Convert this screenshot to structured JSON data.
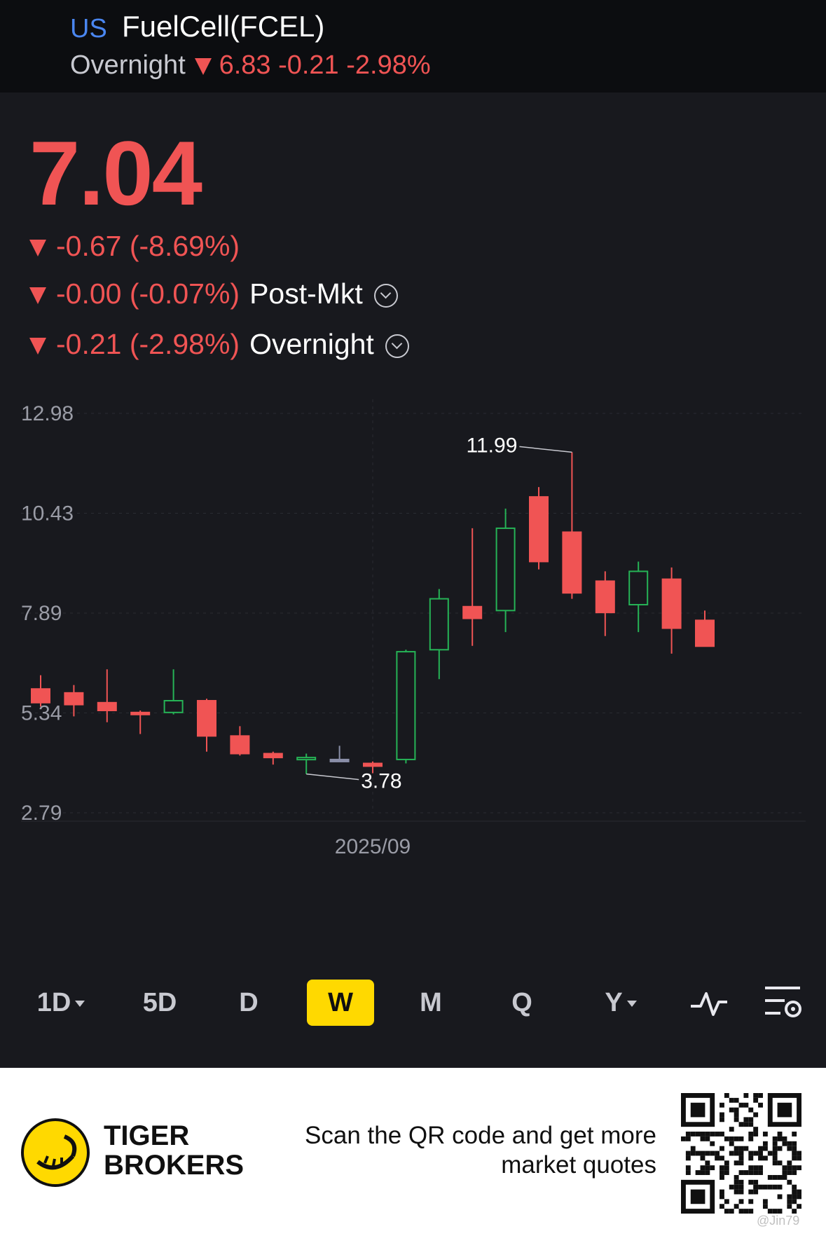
{
  "header": {
    "market": "US",
    "name": "FuelCell(FCEL)",
    "session_label": "Overnight",
    "session_value": "6.83 -0.21 -2.98%"
  },
  "quote": {
    "price": "7.04",
    "change": "-0.67 (-8.69%)",
    "post_change": "-0.00 (-0.07%)",
    "post_label": "Post-Mkt",
    "overnight_change": "-0.21 (-2.98%)",
    "overnight_label": "Overnight"
  },
  "colors": {
    "up": "#26b356",
    "down": "#f05454",
    "flat": "#8a8fa8"
  },
  "chart_data": {
    "type": "candlestick",
    "y_ticks": [
      "12.98",
      "10.43",
      "7.89",
      "5.34",
      "2.79"
    ],
    "ylim": [
      2.79,
      12.98
    ],
    "x_label": "2025/09",
    "max_label": "11.99",
    "min_label": "3.78",
    "candles": [
      {
        "o": 5.95,
        "h": 6.3,
        "l": 5.5,
        "c": 5.6
      },
      {
        "o": 5.85,
        "h": 6.05,
        "l": 5.25,
        "c": 5.55
      },
      {
        "o": 5.6,
        "h": 6.45,
        "l": 5.1,
        "c": 5.4
      },
      {
        "o": 5.35,
        "h": 5.4,
        "l": 4.8,
        "c": 5.3
      },
      {
        "o": 5.35,
        "h": 6.45,
        "l": 5.3,
        "c": 5.65
      },
      {
        "o": 5.65,
        "h": 5.7,
        "l": 4.35,
        "c": 4.75
      },
      {
        "o": 4.75,
        "h": 5.0,
        "l": 4.25,
        "c": 4.3
      },
      {
        "o": 4.3,
        "h": 4.35,
        "l": 4.02,
        "c": 4.2
      },
      {
        "o": 4.15,
        "h": 4.3,
        "l": 3.78,
        "c": 4.2
      },
      {
        "o": 4.15,
        "h": 4.5,
        "l": 4.1,
        "c": 4.15
      },
      {
        "o": 4.05,
        "h": 4.1,
        "l": 3.8,
        "c": 3.98
      },
      {
        "o": 4.15,
        "h": 6.95,
        "l": 4.05,
        "c": 6.9
      },
      {
        "o": 6.95,
        "h": 8.5,
        "l": 6.2,
        "c": 8.25
      },
      {
        "o": 8.05,
        "h": 10.05,
        "l": 7.05,
        "c": 7.75
      },
      {
        "o": 7.95,
        "h": 10.55,
        "l": 7.4,
        "c": 10.05
      },
      {
        "o": 10.85,
        "h": 11.1,
        "l": 9.0,
        "c": 9.2
      },
      {
        "o": 9.95,
        "h": 11.99,
        "l": 8.25,
        "c": 8.4
      },
      {
        "o": 8.7,
        "h": 8.95,
        "l": 7.3,
        "c": 7.9
      },
      {
        "o": 8.1,
        "h": 9.2,
        "l": 7.4,
        "c": 8.95
      },
      {
        "o": 8.75,
        "h": 9.05,
        "l": 6.85,
        "c": 7.5
      },
      {
        "o": 7.7,
        "h": 7.95,
        "l": 7.05,
        "c": 7.04
      }
    ]
  },
  "tabs": [
    {
      "label": "1D",
      "caret": true
    },
    {
      "label": "5D"
    },
    {
      "label": "D"
    },
    {
      "label": "W",
      "active": true
    },
    {
      "label": "M"
    },
    {
      "label": "Q"
    },
    {
      "label": "Y",
      "caret": true
    }
  ],
  "footer": {
    "brand_line1": "TIGER",
    "brand_line2": "BROKERS",
    "scan_line1": "Scan the QR code and get more",
    "scan_line2": "market quotes",
    "watermark": "@Jin79"
  }
}
